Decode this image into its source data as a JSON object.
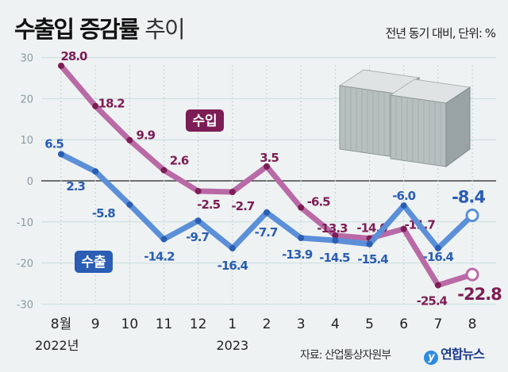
{
  "title": {
    "bold": "수출입 증감률",
    "light": "추이"
  },
  "unit": "전년 동기 대비, 단위: %",
  "source": "자료: 산업통상자원부",
  "logo": "연합뉴스",
  "chart_data": {
    "type": "line",
    "title": "수출입 증감률 추이",
    "categories": [
      "8월",
      "9",
      "10",
      "11",
      "12",
      "1",
      "2",
      "3",
      "4",
      "5",
      "6",
      "7",
      "8"
    ],
    "year_labels": [
      {
        "index": 0,
        "label": "2022년"
      },
      {
        "index": 5,
        "label": "2023"
      }
    ],
    "ylim": [
      -30,
      30
    ],
    "yticks": [
      30,
      20,
      10,
      0,
      -10,
      -20,
      -30
    ],
    "grid": true,
    "series": [
      {
        "name": "수입",
        "color": "#b96aa6",
        "label_color": "#7d1d55",
        "values": [
          28.0,
          18.2,
          9.9,
          2.6,
          -2.5,
          -2.7,
          3.5,
          -6.5,
          -13.3,
          -14.0,
          -11.7,
          -25.4,
          -22.8
        ]
      },
      {
        "name": "수출",
        "color": "#5b8fd8",
        "label_color": "#2a5db3",
        "values": [
          6.5,
          2.3,
          -5.8,
          -14.2,
          -9.7,
          -16.4,
          -7.7,
          -13.9,
          -14.5,
          -15.4,
          -6.0,
          -16.4,
          -8.4
        ]
      }
    ]
  }
}
